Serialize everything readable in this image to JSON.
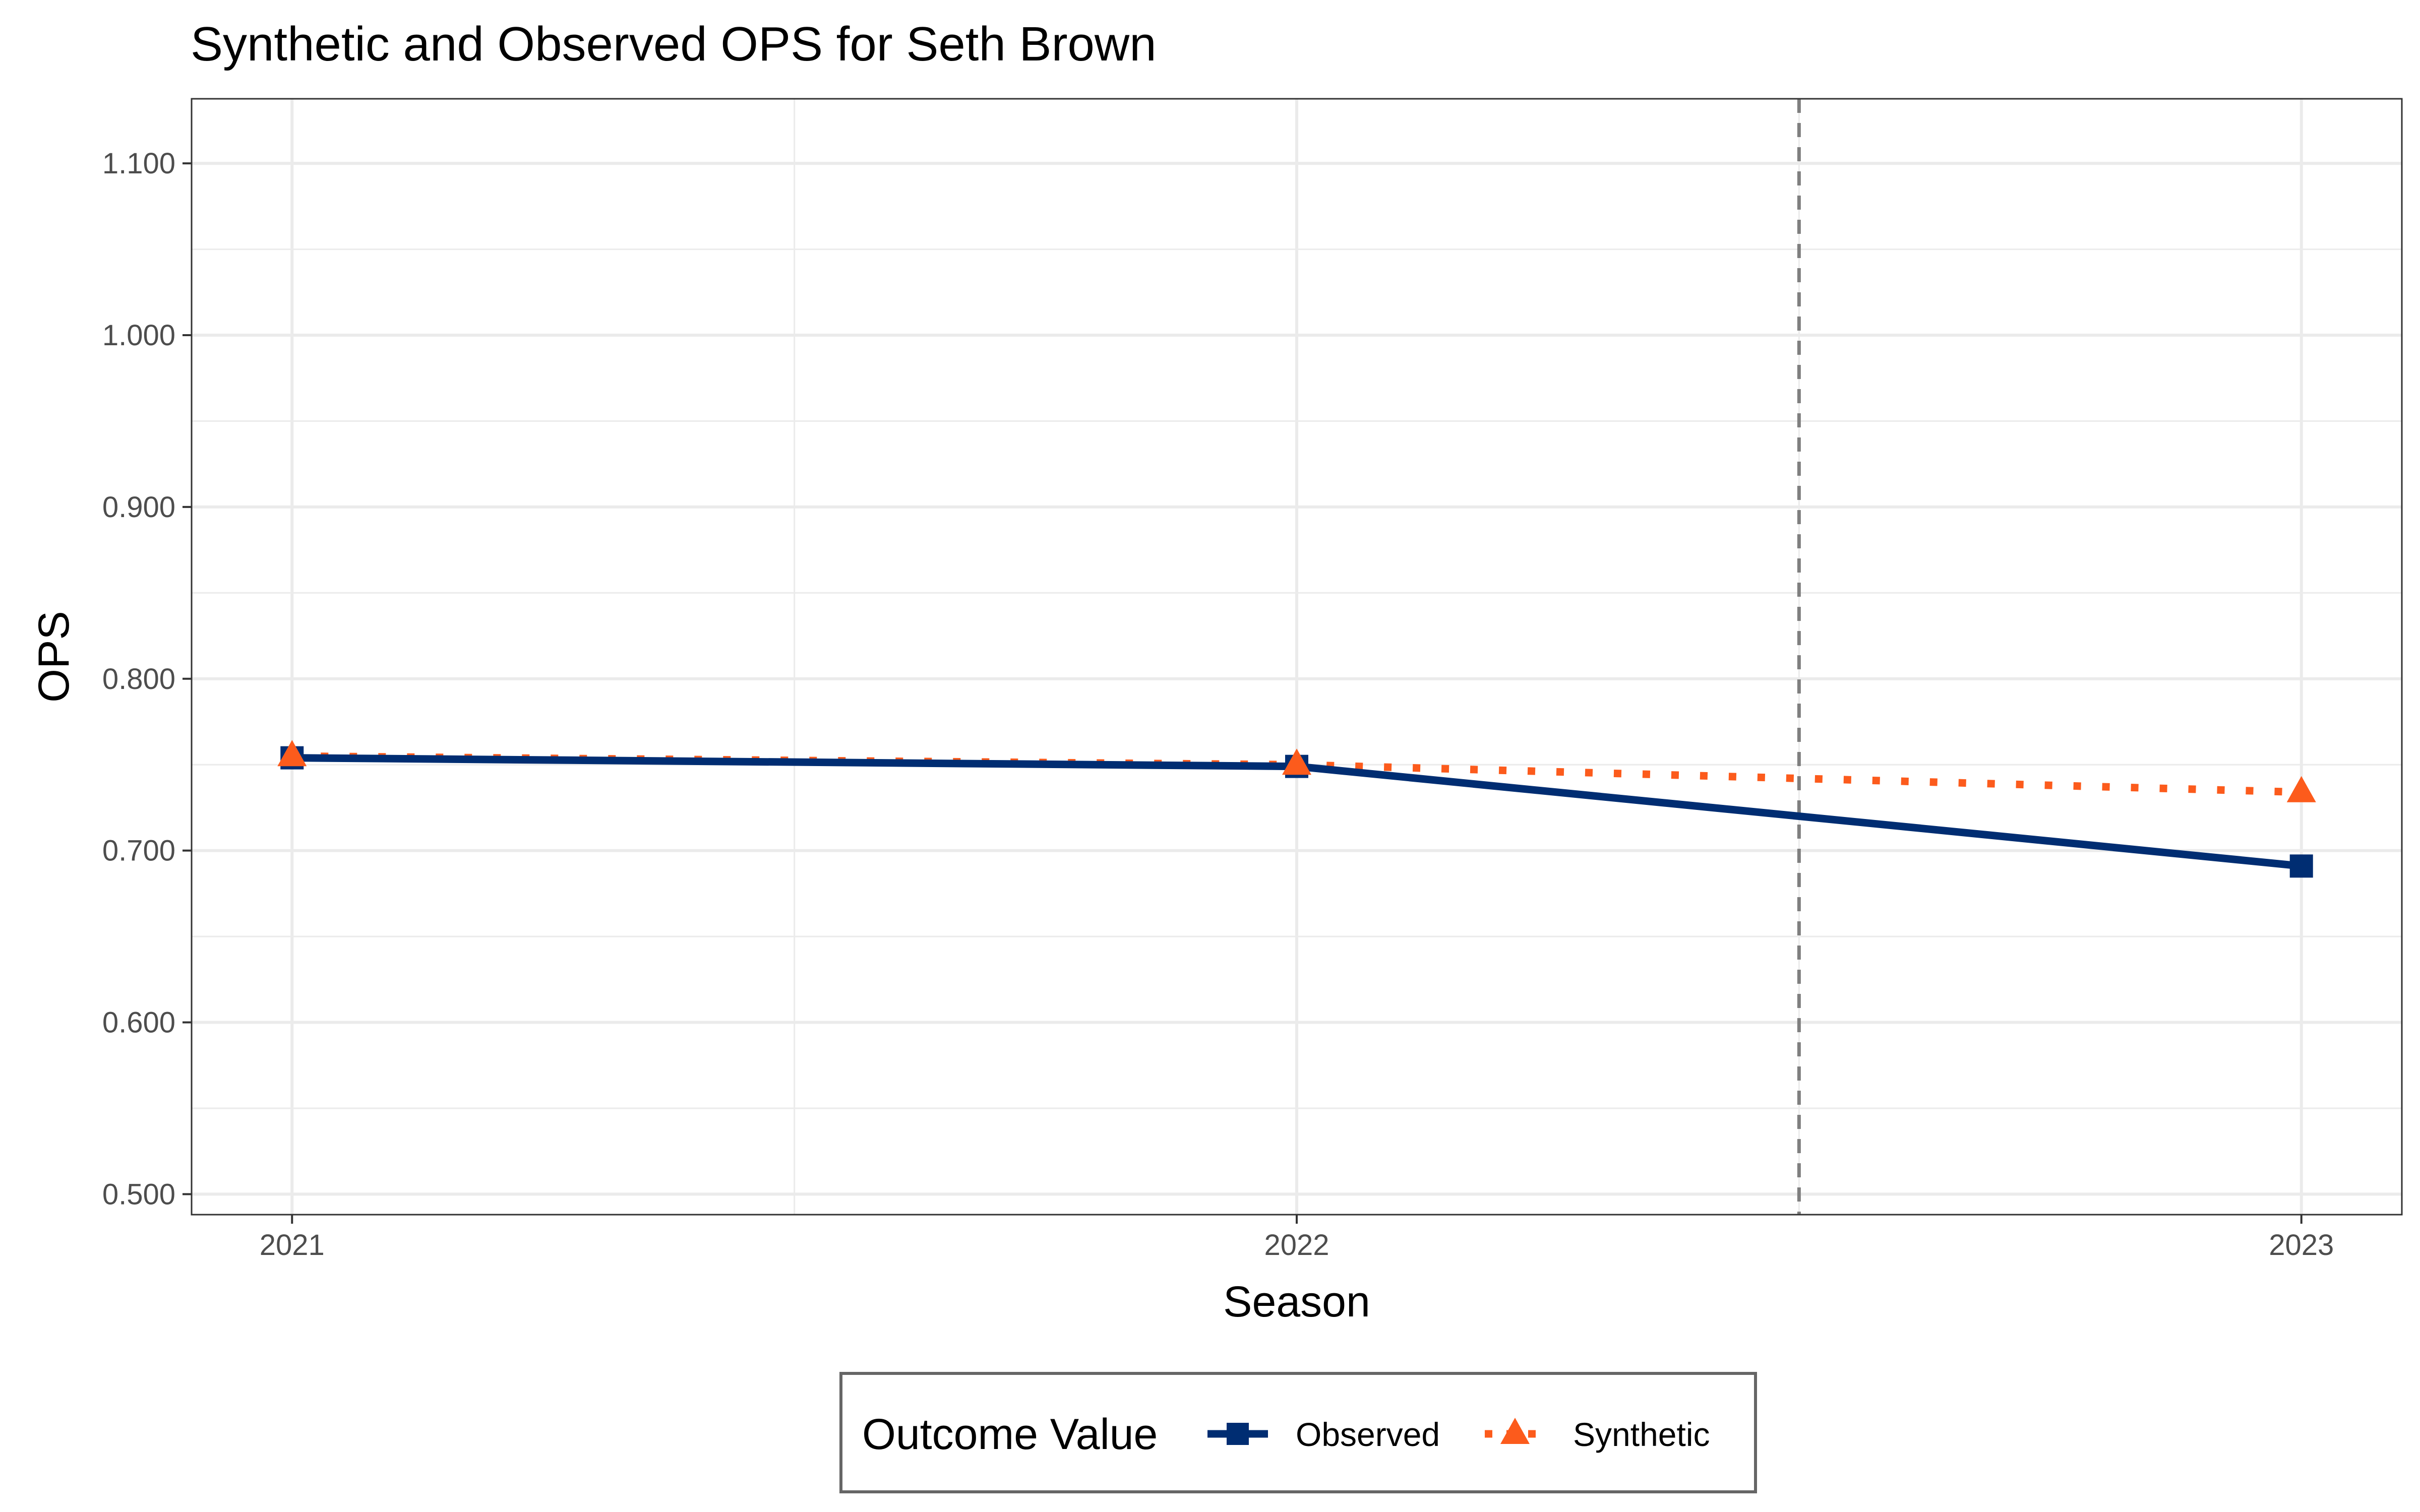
{
  "chart_data": {
    "type": "line",
    "title": "Synthetic and Observed OPS for Seth Brown",
    "xlabel": "Season",
    "ylabel": "OPS",
    "x": [
      2021,
      2022,
      2023
    ],
    "x_tick_labels": [
      "2021",
      "2022",
      "2023"
    ],
    "xlim": [
      2020.9,
      2023.1
    ],
    "ylim": [
      0.4881,
      1.1376
    ],
    "y_ticks": [
      0.5,
      0.6,
      0.7,
      0.8,
      0.9,
      1.0,
      1.1
    ],
    "y_tick_labels": [
      "0.500",
      "0.600",
      "0.700",
      "0.800",
      "0.900",
      "1.000",
      "1.100"
    ],
    "grid": true,
    "treatment_line_x": 2022.5,
    "series": [
      {
        "name": "Observed",
        "values": [
          0.754,
          0.749,
          0.691
        ],
        "color": "#002d72",
        "line_style": "solid",
        "marker": "square"
      },
      {
        "name": "Synthetic",
        "values": [
          0.755,
          0.75,
          0.734
        ],
        "color": "#fc5b1c",
        "line_style": "dotted",
        "marker": "triangle"
      }
    ],
    "legend": {
      "title": "Outcome Value",
      "position": "bottom"
    }
  }
}
